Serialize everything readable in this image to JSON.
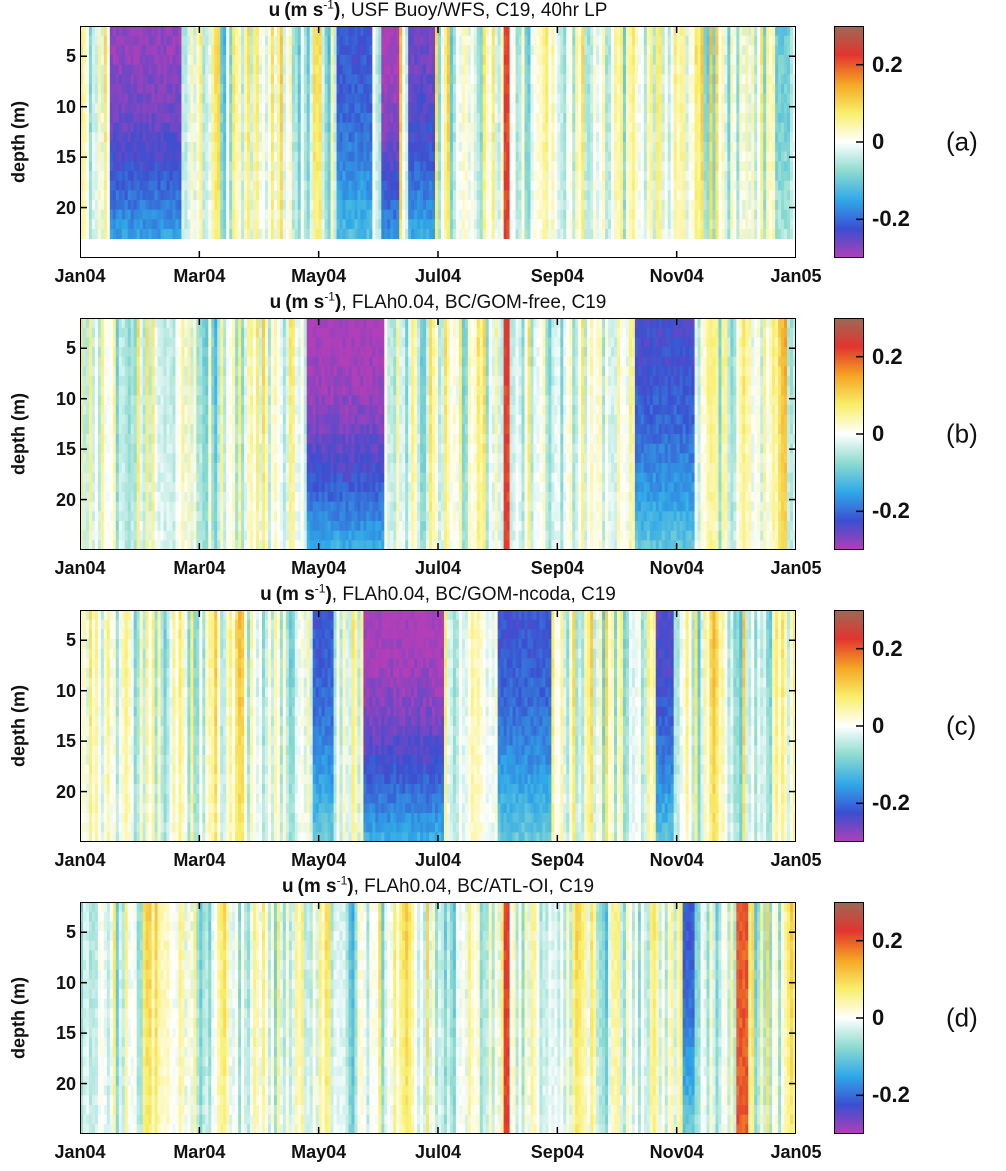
{
  "chart_data": [
    {
      "type": "heatmap",
      "panel_label": "(a)",
      "title_parts": {
        "var": "u",
        "unit_a": "(m s",
        "unit_sup": "-1",
        "unit_b": ")",
        "rest": ", USF Buoy/WFS, C19, 40hr LP"
      },
      "ylabel": "depth (m)",
      "x_ticks": [
        "Jan04",
        "Mar04",
        "May04",
        "Jul04",
        "Sep04",
        "Nov04",
        "Jan05"
      ],
      "y_ticks": [
        "5",
        "10",
        "15",
        "20"
      ],
      "y_tick_values": [
        5,
        10,
        15,
        20
      ],
      "ylim": [
        2,
        25
      ],
      "colorbar_ticks": [
        "0.2",
        "0",
        "-0.2"
      ],
      "colorbar_tick_values": [
        0.2,
        0,
        -0.2
      ],
      "clim": [
        -0.3,
        0.3
      ],
      "seed": 11,
      "bottom_depth": 23.5,
      "events": [
        {
          "start": 0.5,
          "end": 1.7,
          "value": -0.28
        },
        {
          "start": 4.3,
          "end": 4.9,
          "value": -0.22
        },
        {
          "start": 5.05,
          "end": 5.35,
          "value": -0.3
        },
        {
          "start": 5.5,
          "end": 5.95,
          "value": -0.26
        },
        {
          "start": 7.1,
          "end": 7.2,
          "value": 0.22
        },
        {
          "start": 11.65,
          "end": 11.9,
          "value": -0.1
        }
      ]
    },
    {
      "type": "heatmap",
      "panel_label": "(b)",
      "title_parts": {
        "var": "u",
        "unit_a": "(m s",
        "unit_sup": "-1",
        "unit_b": ")",
        "rest": ", FLAh0.04, BC/GOM-free, C19"
      },
      "ylabel": "depth (m)",
      "x_ticks": [
        "Jan04",
        "Mar04",
        "May04",
        "Jul04",
        "Sep04",
        "Nov04",
        "Jan05"
      ],
      "y_ticks": [
        "5",
        "10",
        "15",
        "20"
      ],
      "y_tick_values": [
        5,
        10,
        15,
        20
      ],
      "ylim": [
        2,
        25
      ],
      "colorbar_ticks": [
        "0.2",
        "0",
        "-0.2"
      ],
      "colorbar_tick_values": [
        0.2,
        0,
        -0.2
      ],
      "clim": [
        -0.3,
        0.3
      ],
      "seed": 23,
      "bottom_depth": 25,
      "events": [
        {
          "start": 3.8,
          "end": 5.1,
          "value": -0.3
        },
        {
          "start": 7.1,
          "end": 7.2,
          "value": 0.22
        },
        {
          "start": 9.3,
          "end": 10.3,
          "value": -0.23
        }
      ]
    },
    {
      "type": "heatmap",
      "panel_label": "(c)",
      "title_parts": {
        "var": "u",
        "unit_a": "(m s",
        "unit_sup": "-1",
        "unit_b": ")",
        "rest": ", FLAh0.04, BC/GOM-ncoda, C19"
      },
      "ylabel": "depth (m)",
      "x_ticks": [
        "Jan04",
        "Mar04",
        "May04",
        "Jul04",
        "Sep04",
        "Nov04",
        "Jan05"
      ],
      "y_ticks": [
        "5",
        "10",
        "15",
        "20"
      ],
      "y_tick_values": [
        5,
        10,
        15,
        20
      ],
      "ylim": [
        2,
        25
      ],
      "colorbar_ticks": [
        "0.2",
        "0",
        "-0.2"
      ],
      "colorbar_tick_values": [
        0.2,
        0,
        -0.2
      ],
      "clim": [
        -0.3,
        0.3
      ],
      "seed": 37,
      "bottom_depth": 25,
      "events": [
        {
          "start": 3.9,
          "end": 4.25,
          "value": -0.22
        },
        {
          "start": 4.75,
          "end": 6.1,
          "value": -0.3
        },
        {
          "start": 7.0,
          "end": 7.9,
          "value": -0.22
        },
        {
          "start": 9.65,
          "end": 9.95,
          "value": -0.24
        }
      ]
    },
    {
      "type": "heatmap",
      "panel_label": "(d)",
      "title_parts": {
        "var": "u",
        "unit_a": "(m s",
        "unit_sup": "-1",
        "unit_b": ")",
        "rest": ", FLAh0.04, BC/ATL-OI, C19"
      },
      "ylabel": "depth (m)",
      "x_ticks": [
        "Jan04",
        "Mar04",
        "May04",
        "Jul04",
        "Sep04",
        "Nov04",
        "Jan05"
      ],
      "y_ticks": [
        "5",
        "10",
        "15",
        "20"
      ],
      "y_tick_values": [
        5,
        10,
        15,
        20
      ],
      "ylim": [
        2,
        25
      ],
      "colorbar_ticks": [
        "0.2",
        "0",
        "-0.2"
      ],
      "colorbar_tick_values": [
        0.2,
        0,
        -0.2
      ],
      "clim": [
        -0.3,
        0.3
      ],
      "seed": 53,
      "bottom_depth": 25,
      "events": [
        {
          "start": 7.1,
          "end": 7.2,
          "value": 0.22
        },
        {
          "start": 11.0,
          "end": 11.2,
          "value": 0.2
        },
        {
          "start": 10.1,
          "end": 10.3,
          "value": -0.22
        }
      ]
    }
  ],
  "colormap": [
    "#b03fb8",
    "#3b4fd0",
    "#2fa8e8",
    "#8ddcd0",
    "#ffffff",
    "#f8ef6a",
    "#f5a623",
    "#e3342f",
    "#9b6a55"
  ]
}
